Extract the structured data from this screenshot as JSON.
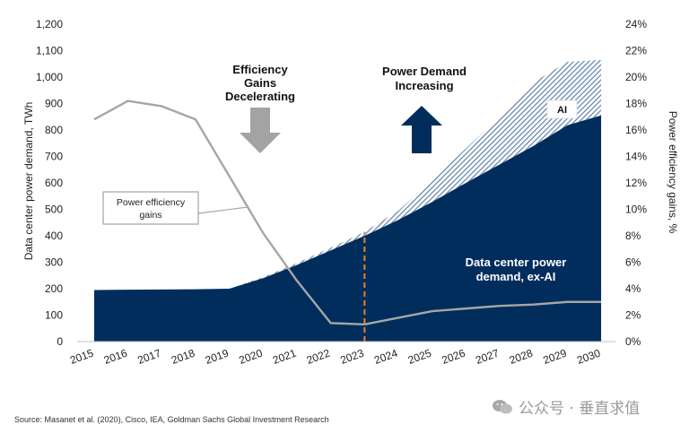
{
  "chart_data": {
    "type": "area",
    "title": "",
    "ylabel_left": "Data center power demand, TWh",
    "ylabel_right": "Power efficiency gains, %",
    "ylim_left": [
      0,
      1200
    ],
    "ylim_right": [
      0,
      24
    ],
    "yticks_left": [
      "0",
      "100",
      "200",
      "300",
      "400",
      "500",
      "600",
      "700",
      "800",
      "900",
      "1,000",
      "1,100",
      "1,200"
    ],
    "yticks_right": [
      "0%",
      "2%",
      "4%",
      "6%",
      "8%",
      "10%",
      "12%",
      "14%",
      "16%",
      "18%",
      "20%",
      "22%",
      "24%"
    ],
    "categories": [
      "2015",
      "2016",
      "2017",
      "2018",
      "2019",
      "2020",
      "2021",
      "2022",
      "2023",
      "2024",
      "2025",
      "2026",
      "2027",
      "2028",
      "2029",
      "2030"
    ],
    "series": [
      {
        "name": "Data center power demand, ex-AI",
        "axis": "left",
        "kind": "area",
        "values": [
          195,
          196,
          197,
          198,
          200,
          240,
          290,
          345,
          400,
          460,
          528,
          600,
          670,
          740,
          818,
          855
        ]
      },
      {
        "name": "AI",
        "axis": "left",
        "kind": "stacked-area",
        "values": [
          0,
          0,
          0,
          0,
          0,
          4,
          7,
          10,
          15,
          35,
          82,
          130,
          180,
          240,
          240,
          210
        ]
      },
      {
        "name": "Power efficiency gains",
        "axis": "right",
        "kind": "line",
        "values": [
          16.8,
          18.2,
          17.8,
          16.8,
          12.5,
          8.2,
          4.6,
          1.4,
          1.3,
          1.8,
          2.3,
          2.5,
          2.7,
          2.8,
          3.0,
          3.0
        ]
      }
    ],
    "marker_year": "2023",
    "annotations": {
      "efficiency": [
        "Efficiency",
        "Gains",
        "Decelerating"
      ],
      "demand": [
        "Power Demand",
        "Increasing"
      ],
      "ai": "AI",
      "exai": [
        "Data center power",
        "demand, ex-AI"
      ],
      "callout": [
        "Power  efficiency",
        "gains"
      ]
    }
  },
  "colors": {
    "navy": "#002d5c",
    "hatch": "#5d82aa",
    "line": "#a6a6a6",
    "dash": "#e0872e",
    "arrow_gray": "#a3a3a3"
  },
  "source": "Source: Masanet et al. (2020), Cisco, IEA, Goldman Sachs Global Investment Research",
  "watermark": "公众号 · 垂直求值"
}
